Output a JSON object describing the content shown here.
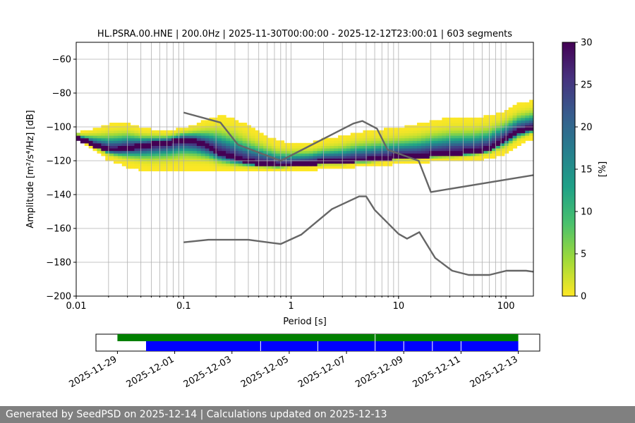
{
  "chart_data": {
    "type": "heatmap",
    "title": "HL.PSRA.00.HNE | 200.0Hz | 2025-11-30T00:00:00 - 2025-12-12T23:00:01 | 603 segments",
    "xlabel": "Period [s]",
    "ylabel": "Amplitude [m²/s⁴/Hz] [dB]",
    "xscale": "log",
    "xlim": [
      0.01,
      180
    ],
    "ylim": [
      -200,
      -50
    ],
    "grid": true,
    "x_ticks": [
      0.01,
      0.1,
      1,
      10,
      100
    ],
    "x_tick_labels": [
      "0.01",
      "0.1",
      "1",
      "10",
      "100"
    ],
    "y_ticks": [
      -200,
      -180,
      -160,
      -140,
      -120,
      -100,
      -80,
      -60
    ],
    "y_tick_labels": [
      "−200",
      "−180",
      "−160",
      "−140",
      "−120",
      "−100",
      "−80",
      "−60"
    ],
    "colorbar": {
      "label": "[%]",
      "range": [
        0,
        30
      ],
      "ticks": [
        0,
        5,
        10,
        15,
        20,
        25,
        30
      ],
      "tick_labels": [
        "0",
        "5",
        "10",
        "15",
        "20",
        "25",
        "30"
      ],
      "colormap": "viridis_r",
      "colors": [
        "#fde725",
        "#a0da39",
        "#4ac16d",
        "#1fa187",
        "#277f8e",
        "#365c8d",
        "#46327e",
        "#440154"
      ]
    },
    "psd_mode": {
      "period": [
        0.01,
        0.012,
        0.016,
        0.02,
        0.025,
        0.03,
        0.04,
        0.05,
        0.07,
        0.1,
        0.13,
        0.17,
        0.22,
        0.3,
        0.4,
        0.55,
        0.75,
        1,
        1.5,
        2,
        3,
        4,
        5,
        7,
        10,
        15,
        20,
        30,
        50,
        70,
        100,
        130,
        180
      ],
      "db": [
        -106,
        -109,
        -112,
        -114,
        -114,
        -113,
        -112,
        -111,
        -110,
        -108,
        -109,
        -112,
        -116,
        -119,
        -121,
        -122,
        -123,
        -123,
        -122,
        -121,
        -121,
        -120,
        -120,
        -119,
        -118,
        -118,
        -117,
        -116,
        -115,
        -113,
        -107,
        -103,
        -101
      ]
    },
    "spread_db": {
      "upper": [
        -104,
        -103,
        -101,
        -99,
        -98,
        -98,
        -101,
        -102,
        -103,
        -101,
        -99,
        -96,
        -94,
        -96,
        -100,
        -105,
        -109,
        -110,
        -110,
        -108,
        -106,
        -104,
        -103,
        -102,
        -101,
        -99,
        -97,
        -95,
        -95,
        -94,
        -91,
        -87,
        -85
      ],
      "lower": [
        -107,
        -110,
        -115,
        -119,
        -121,
        -123,
        -125,
        -126,
        -126,
        -125,
        -125,
        -125,
        -126,
        -126,
        -126,
        -126,
        -126,
        -125,
        -125,
        -124,
        -124,
        -123,
        -123,
        -122,
        -121,
        -121,
        -120,
        -120,
        -119,
        -118,
        -115,
        -110,
        -106
      ]
    },
    "series": [
      {
        "period": [
          0.1,
          0.22,
          0.32,
          0.8,
          3.8,
          4.6,
          6.3,
          7.9,
          15.4,
          20,
          180
        ],
        "db": [
          -91.5,
          -97.4,
          -110.5,
          -120,
          -98,
          -96.5,
          -101,
          -113.5,
          -120,
          -138.5,
          -128.5
        ]
      },
      {
        "period": [
          0.1,
          0.17,
          0.4,
          0.8,
          1.24,
          2.4,
          4.3,
          5,
          6,
          10,
          12,
          15.6,
          21.9,
          31.6,
          45,
          70,
          101,
          154,
          180
        ],
        "db": [
          -168.2,
          -166.7,
          -166.7,
          -169.2,
          -163.7,
          -148.6,
          -141.1,
          -141.1,
          -149.1,
          -163.2,
          -166.1,
          -162.2,
          -177.4,
          -185,
          -187.5,
          -187.5,
          -185,
          -185,
          -185.6
        ]
      }
    ],
    "availability": {
      "dates": [
        "2025-11-29",
        "2025-12-01",
        "2025-12-03",
        "2025-12-05",
        "2025-12-07",
        "2025-12-09",
        "2025-12-11",
        "2025-12-13"
      ],
      "start": "2025-11-28T06:00:00",
      "end": "2025-12-13T18:00:00",
      "data_bar": {
        "color": "#008000",
        "start": "2025-11-29T00:00:00",
        "end": "2025-12-13T00:00:00"
      },
      "psd_bar": {
        "color": "#0000ff",
        "start": "2025-11-30T00:00:00",
        "end": "2025-12-13T00:00:00",
        "gaps": [
          "2025-12-04T00:00:00",
          "2025-12-06T00:00:00",
          "2025-12-08T00:00:00",
          "2025-12-09T00:00:00",
          "2025-12-10T00:00:00",
          "2025-12-11T00:00:00"
        ],
        "data_gap": "2025-12-08T00:00:00"
      }
    }
  },
  "footer": {
    "text": "Generated by SeedPSD on 2025-12-14 | Calculations updated on 2025-12-13"
  }
}
